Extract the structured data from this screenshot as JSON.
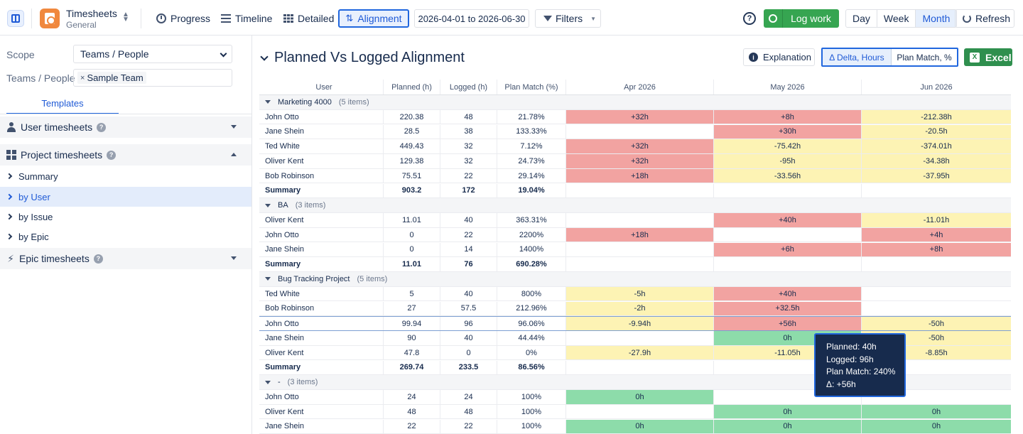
{
  "topbar": {
    "app_title": "Timesheets",
    "app_subtitle": "General",
    "nav": [
      "Progress",
      "Timeline",
      "Detailed",
      "Alignment"
    ],
    "date_range": "2026-04-01 to 2026-06-30",
    "filters_label": "Filters",
    "help": "?",
    "log_work_label": "Log work",
    "periods": [
      "Day",
      "Week",
      "Month"
    ],
    "active_period": "Month",
    "refresh_label": "Refresh"
  },
  "sidebar": {
    "scope_label": "Scope",
    "scope_value": "Teams / People",
    "teams_label": "Teams / People",
    "team_chip": "Sample Team",
    "templates_tab": "Templates",
    "sections": {
      "user": "User timesheets",
      "project": "Project timesheets",
      "epic": "Epic timesheets"
    },
    "project_items": [
      "Summary",
      "by User",
      "by Issue",
      "by Epic"
    ],
    "active_item": "by User"
  },
  "main": {
    "title": "Planned Vs Logged Alignment",
    "explanation_label": "Explanation",
    "mode_delta": "Δ Delta, Hours",
    "mode_match": "Plan Match, %",
    "excel_label": "Excel"
  },
  "table": {
    "headers": [
      "User",
      "Planned (h)",
      "Logged (h)",
      "Plan Match (%)",
      "Apr 2026",
      "May 2026",
      "Jun 2026"
    ],
    "rows": [
      {
        "type": "group",
        "name": "Marketing 4000",
        "count": "(5 items)"
      },
      {
        "type": "user",
        "user": "John Otto",
        "planned": "220.38",
        "logged": "48",
        "match": "21.78%",
        "m1": "+32h",
        "c1": "red",
        "m2": "+8h",
        "c2": "red",
        "m3": "-212.38h",
        "c3": "yel"
      },
      {
        "type": "user",
        "user": "Jane Shein",
        "planned": "28.5",
        "logged": "38",
        "match": "133.33%",
        "m1": "",
        "c1": "",
        "m2": "+30h",
        "c2": "red",
        "m3": "-20.5h",
        "c3": "yel"
      },
      {
        "type": "user",
        "user": "Ted White",
        "planned": "449.43",
        "logged": "32",
        "match": "7.12%",
        "m1": "+32h",
        "c1": "red",
        "m2": "-75.42h",
        "c2": "yel",
        "m3": "-374.01h",
        "c3": "yel"
      },
      {
        "type": "user",
        "user": "Oliver Kent",
        "planned": "129.38",
        "logged": "32",
        "match": "24.73%",
        "m1": "+32h",
        "c1": "red",
        "m2": "-95h",
        "c2": "yel",
        "m3": "-34.38h",
        "c3": "yel"
      },
      {
        "type": "user",
        "user": "Bob Robinson",
        "planned": "75.51",
        "logged": "22",
        "match": "29.14%",
        "m1": "+18h",
        "c1": "red",
        "m2": "-33.56h",
        "c2": "yel",
        "m3": "-37.95h",
        "c3": "yel"
      },
      {
        "type": "sum",
        "user": "Summary",
        "planned": "903.2",
        "logged": "172",
        "match": "19.04%"
      },
      {
        "type": "group",
        "name": "BA",
        "count": "(3 items)"
      },
      {
        "type": "user",
        "user": "Oliver Kent",
        "planned": "11.01",
        "logged": "40",
        "match": "363.31%",
        "m1": "",
        "c1": "",
        "m2": "+40h",
        "c2": "red",
        "m3": "-11.01h",
        "c3": "yel"
      },
      {
        "type": "user",
        "user": "John Otto",
        "planned": "0",
        "logged": "22",
        "match": "2200%",
        "m1": "+18h",
        "c1": "red",
        "m2": "",
        "c2": "",
        "m3": "+4h",
        "c3": "red"
      },
      {
        "type": "user",
        "user": "Jane Shein",
        "planned": "0",
        "logged": "14",
        "match": "1400%",
        "m1": "",
        "c1": "",
        "m2": "+6h",
        "c2": "red",
        "m3": "+8h",
        "c3": "red"
      },
      {
        "type": "sum",
        "user": "Summary",
        "planned": "11.01",
        "logged": "76",
        "match": "690.28%"
      },
      {
        "type": "group",
        "name": "Bug Tracking Project",
        "count": "(5 items)"
      },
      {
        "type": "user",
        "user": "Ted White",
        "planned": "5",
        "logged": "40",
        "match": "800%",
        "m1": "-5h",
        "c1": "yel",
        "m2": "+40h",
        "c2": "red",
        "m3": "",
        "c3": ""
      },
      {
        "type": "user",
        "user": "Bob Robinson",
        "planned": "27",
        "logged": "57.5",
        "match": "212.96%",
        "m1": "-2h",
        "c1": "yel",
        "m2": "+32.5h",
        "c2": "red",
        "m3": "",
        "c3": ""
      },
      {
        "type": "user",
        "user": "John Otto",
        "planned": "99.94",
        "logged": "96",
        "match": "96.06%",
        "m1": "-9.94h",
        "c1": "yel",
        "m2": "+56h",
        "c2": "red",
        "m3": "-50h",
        "c3": "yel",
        "highlight": true
      },
      {
        "type": "user",
        "user": "Jane Shein",
        "planned": "90",
        "logged": "40",
        "match": "44.44%",
        "m1": "",
        "c1": "",
        "m2": "0h",
        "c2": "grn",
        "m3": "-50h",
        "c3": "yel"
      },
      {
        "type": "user",
        "user": "Oliver Kent",
        "planned": "47.8",
        "logged": "0",
        "match": "0%",
        "m1": "-27.9h",
        "c1": "yel",
        "m2": "-11.05h",
        "c2": "yel",
        "m3": "-8.85h",
        "c3": "yel"
      },
      {
        "type": "sum",
        "user": "Summary",
        "planned": "269.74",
        "logged": "233.5",
        "match": "86.56%"
      },
      {
        "type": "group",
        "name": "-",
        "count": "(3 items)"
      },
      {
        "type": "user",
        "user": "John Otto",
        "planned": "24",
        "logged": "24",
        "match": "100%",
        "m1": "0h",
        "c1": "grn",
        "m2": "",
        "c2": "",
        "m3": "",
        "c3": ""
      },
      {
        "type": "user",
        "user": "Oliver Kent",
        "planned": "48",
        "logged": "48",
        "match": "100%",
        "m1": "",
        "c1": "",
        "m2": "0h",
        "c2": "grn",
        "m3": "0h",
        "c3": "grn"
      },
      {
        "type": "user",
        "user": "Jane Shein",
        "planned": "22",
        "logged": "22",
        "match": "100%",
        "m1": "0h",
        "c1": "grn",
        "m2": "0h",
        "c2": "grn",
        "m3": "0h",
        "c3": "grn"
      }
    ]
  },
  "tooltip": {
    "planned": "Planned: 40h",
    "logged": "Logged: 96h",
    "match": "Plan Match: 240%",
    "delta": "Δ: +56h"
  },
  "colors": {
    "accent": "#2167de",
    "over": "#f2a3a1",
    "under": "#fdf3b4",
    "match": "#8ddcaa",
    "log_work": "#36a551"
  }
}
